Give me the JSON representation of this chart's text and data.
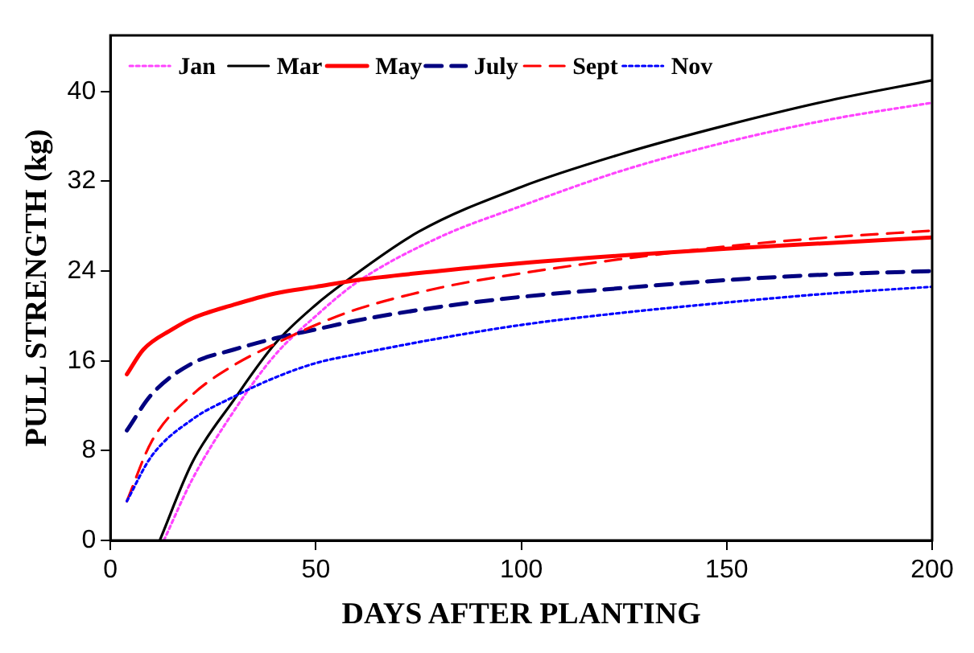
{
  "chart_data": {
    "type": "line",
    "xlabel": "DAYS AFTER PLANTING",
    "ylabel": "PULL STRENGTH (kg)",
    "xlim": [
      0,
      200
    ],
    "ylim": [
      0,
      45
    ],
    "xticks": [
      0,
      50,
      100,
      150,
      200
    ],
    "yticks": [
      0,
      8,
      16,
      24,
      32,
      40
    ],
    "grid": false,
    "legend": "top left",
    "marker": "none",
    "series": [
      {
        "name": "Jan",
        "color": "#ff44ff",
        "line_style": "dotted",
        "x": [
          13,
          20,
          30,
          40,
          50,
          60,
          80,
          100,
          125,
          150,
          175,
          200
        ],
        "values": [
          0,
          5.5,
          11.5,
          16.5,
          20,
          23,
          27,
          29.8,
          33,
          35.5,
          37.5,
          39
        ]
      },
      {
        "name": "Mar",
        "color": "#000000",
        "line_style": "solid",
        "x": [
          12,
          20,
          30,
          40,
          50,
          57,
          75,
          100,
          125,
          150,
          175,
          200
        ],
        "values": [
          0,
          7,
          12.5,
          17.5,
          21,
          23,
          27.5,
          31.5,
          34.5,
          37,
          39.2,
          41
        ]
      },
      {
        "name": "May",
        "color": "#ff0000",
        "line_style": "solid",
        "x": [
          4,
          8,
          15,
          20,
          30,
          40,
          50,
          60,
          80,
          100,
          125,
          150,
          175,
          200
        ],
        "values": [
          14.8,
          17,
          18.8,
          19.8,
          21,
          22,
          22.6,
          23.2,
          24,
          24.7,
          25.4,
          26,
          26.5,
          27
        ]
      },
      {
        "name": "July",
        "color": "#000080",
        "line_style": "dashed",
        "x": [
          4,
          10,
          20,
          30,
          40,
          50,
          60,
          80,
          100,
          125,
          150,
          175,
          200
        ],
        "values": [
          9.8,
          13,
          15.8,
          17,
          18,
          18.8,
          19.6,
          20.8,
          21.7,
          22.5,
          23.2,
          23.7,
          24
        ]
      },
      {
        "name": "Sept",
        "color": "#ff0000",
        "line_style": "dashed",
        "x": [
          4,
          10,
          20,
          30,
          40,
          50,
          60,
          80,
          100,
          125,
          150,
          175,
          200
        ],
        "values": [
          3.5,
          8.8,
          13,
          15.6,
          17.5,
          19.2,
          20.6,
          22.5,
          23.8,
          25.1,
          26.2,
          27,
          27.6
        ]
      },
      {
        "name": "Nov",
        "color": "#0000ff",
        "line_style": "dotted",
        "x": [
          4,
          10,
          20,
          30,
          40,
          50,
          60,
          80,
          100,
          125,
          150,
          175,
          200
        ],
        "values": [
          3.5,
          7.5,
          10.8,
          12.8,
          14.5,
          15.8,
          16.6,
          18,
          19.2,
          20.3,
          21.2,
          22,
          22.6
        ]
      }
    ]
  }
}
